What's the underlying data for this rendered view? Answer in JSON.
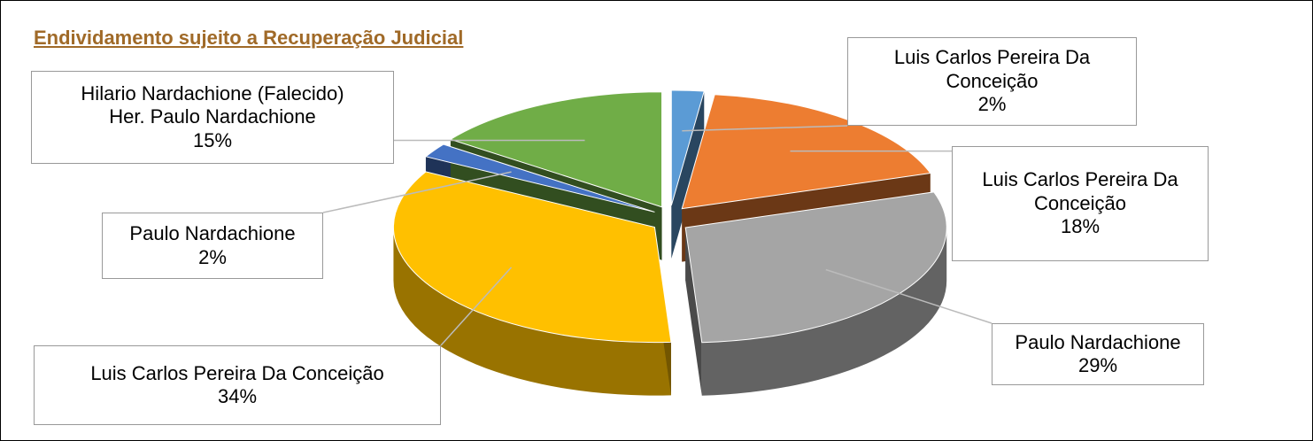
{
  "chart_data": {
    "type": "pie",
    "title": "Endividamento sujeito a Recuperação Judicial",
    "categories": [
      "Luis Carlos Pereira Da Conceição",
      "Luis Carlos Pereira Da Conceição",
      "Paulo Nardachione",
      "Luis Carlos Pereira Da Conceição",
      "Paulo Nardachione",
      "Hilario Nardachione (Falecido)\nHer. Paulo Nardachione"
    ],
    "values": [
      2,
      18,
      29,
      34,
      2,
      15
    ],
    "value_labels": [
      "2%",
      "18%",
      "29%",
      "34%",
      "2%",
      "15%"
    ],
    "colors": [
      "#5b9bd5",
      "#ed7d31",
      "#a5a5a5",
      "#ffc000",
      "#4472c4",
      "#70ad47"
    ]
  }
}
